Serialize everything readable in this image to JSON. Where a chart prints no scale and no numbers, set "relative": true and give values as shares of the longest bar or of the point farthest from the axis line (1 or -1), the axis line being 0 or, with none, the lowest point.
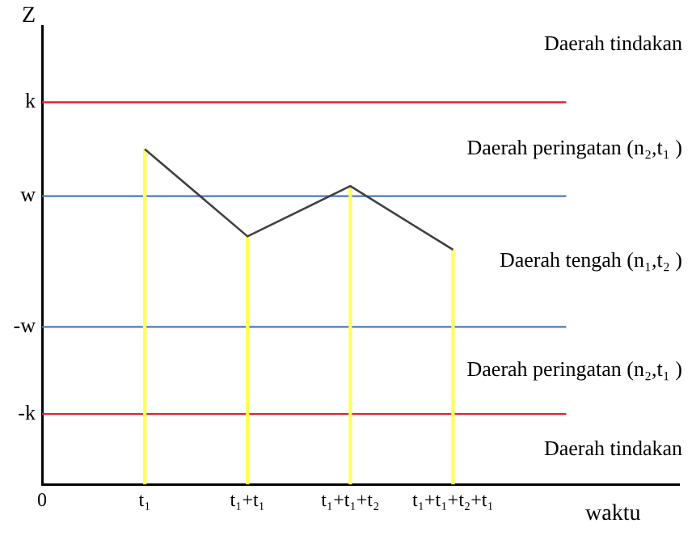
{
  "chart_data": {
    "type": "line",
    "xlabel": "waktu",
    "relative": true,
    "categories": [
      "0",
      "t₁",
      "t₁+t₁",
      "t₁+t₁+t₂",
      "t₁+t₁+t₂+t₁"
    ],
    "series": [
      {
        "type": "bar",
        "color": "#ffff55",
        "values": [
          null,
          1,
          0.74,
          0.89,
          0.7
        ]
      },
      {
        "color": "#404040",
        "values": [
          null,
          1,
          0.74,
          0.89,
          0.7
        ]
      }
    ],
    "ref_lines": [
      {
        "axis": "y",
        "value": 1.14,
        "label": "k",
        "color": "#e8202a"
      },
      {
        "axis": "y",
        "value": 0.86,
        "label": "w",
        "color": "#4a78c0"
      },
      {
        "axis": "y",
        "value": 0.47,
        "label": "-w",
        "color": "#4a78c0"
      },
      {
        "axis": "y",
        "value": 0.21,
        "label": "-k",
        "color": "#e8202a"
      }
    ],
    "annotations": [
      "Z",
      "Daerah tindakan",
      "Daerah peringatan (n₂,t₁ )",
      "Daerah tengah (n₁,t₂ )",
      "Daerah peringatan (n₂,t₁ )",
      "Daerah tindakan"
    ],
    "grid": false,
    "legend": false,
    "marker": "none",
    "line_style": "solid"
  }
}
